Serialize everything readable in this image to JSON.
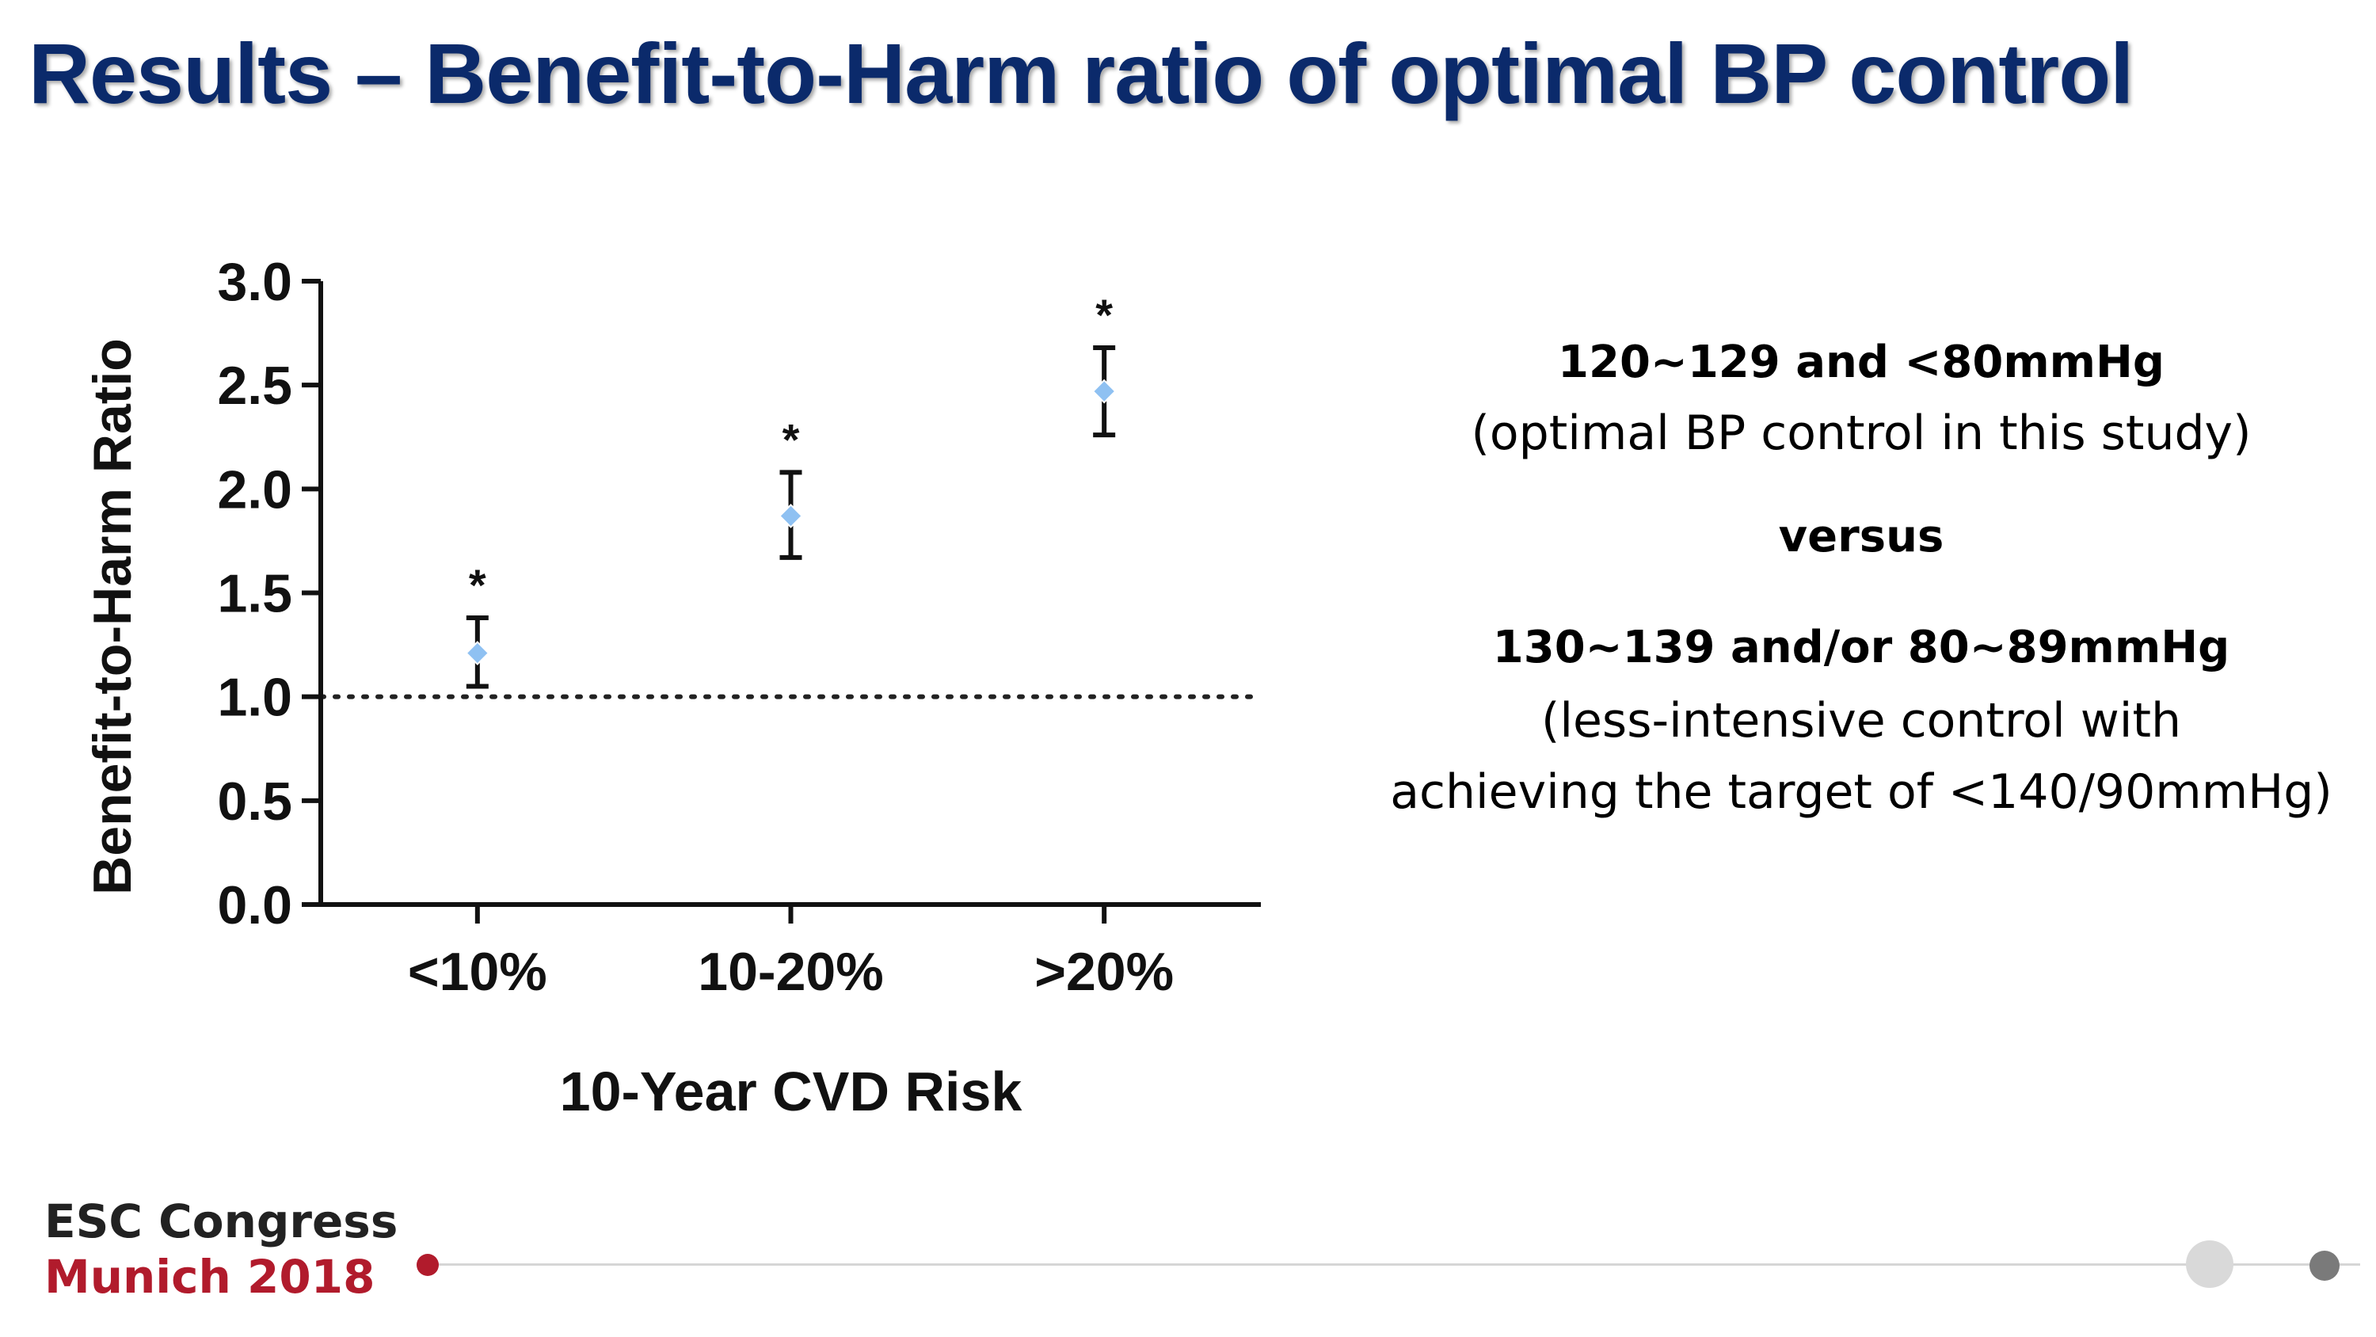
{
  "slide": {
    "title": "Results – Benefit-to-Harm ratio of optimal BP control"
  },
  "notes": {
    "line1": "120~129 and <80mmHg",
    "line2": "(optimal BP control in this study)",
    "line3": "versus",
    "line4": "130~139 and/or 80~89mmHg",
    "line5": "(less-intensive control with",
    "line6": "achieving the target of <140/90mmHg)"
  },
  "footer": {
    "logo_line1": "ESC Congress",
    "logo_line2": "Munich 2018"
  },
  "colors": {
    "title": "#0b2a6b",
    "marker": "#8fc1f2",
    "brand_red": "#b11b2c"
  },
  "chart_data": {
    "type": "scatter",
    "xlabel": "10-Year CVD Risk",
    "ylabel": "Benefit-to-Harm Ratio",
    "categories": [
      "<10%",
      "10-20%",
      ">20%"
    ],
    "values": [
      1.21,
      1.87,
      2.47
    ],
    "error_low": [
      1.05,
      1.67,
      2.26
    ],
    "error_high": [
      1.38,
      2.08,
      2.68
    ],
    "annotations": [
      "*",
      "*",
      "*"
    ],
    "reference_line": 1.0,
    "ylim": [
      0,
      3
    ],
    "yticks": [
      "0.0",
      "0.5",
      "1.0",
      "1.5",
      "2.0",
      "2.5",
      "3.0"
    ],
    "grid": false
  }
}
